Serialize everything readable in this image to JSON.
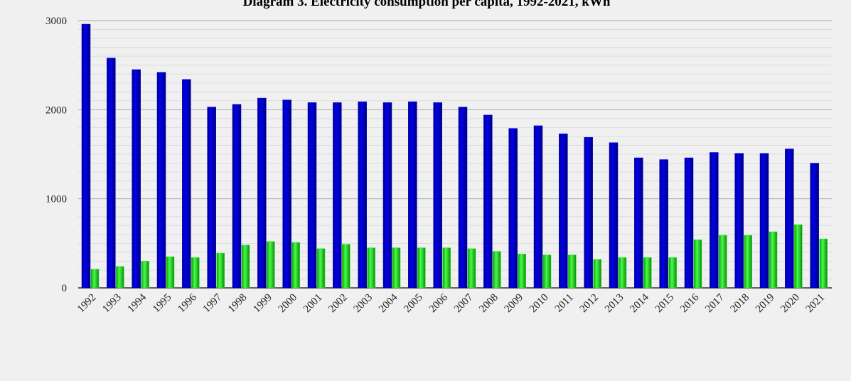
{
  "chart_data": {
    "type": "bar",
    "title": "Diagram 3. Electricity consumption per capita, 1992-2021, kWh",
    "categories": [
      "1992",
      "1993",
      "1994",
      "1995",
      "1996",
      "1997",
      "1998",
      "1999",
      "2000",
      "2001",
      "2002",
      "2003",
      "2004",
      "2005",
      "2006",
      "2007",
      "2008",
      "2009",
      "2010",
      "2011",
      "2012",
      "2013",
      "2014",
      "2015",
      "2016",
      "2017",
      "2018",
      "2019",
      "2020",
      "2021"
    ],
    "series": [
      {
        "color": "#0000e6",
        "values": [
          2960,
          2580,
          2450,
          2420,
          2340,
          2030,
          2060,
          2130,
          2110,
          2080,
          2080,
          2090,
          2080,
          2090,
          2080,
          2030,
          1940,
          1790,
          1820,
          1730,
          1690,
          1630,
          1460,
          1440,
          1460,
          1520,
          1510,
          1510,
          1560,
          1400
        ]
      },
      {
        "color": "#22e622",
        "values": [
          210,
          240,
          300,
          350,
          340,
          390,
          480,
          520,
          510,
          440,
          490,
          450,
          450,
          450,
          450,
          440,
          410,
          380,
          370,
          370,
          320,
          340,
          340,
          340,
          540,
          590,
          590,
          630,
          710,
          550
        ]
      }
    ],
    "ylim": [
      0,
      3000
    ],
    "yticks": [
      0,
      1000,
      2000,
      3000
    ],
    "minor_yticks": [
      100,
      200,
      300,
      400,
      500,
      600,
      700,
      800,
      900,
      1100,
      1200,
      1300,
      1400,
      1500,
      1600,
      1700,
      1800,
      1900,
      2100,
      2200,
      2300,
      2400,
      2500,
      2600,
      2700,
      2800,
      2900
    ],
    "grid": true
  }
}
